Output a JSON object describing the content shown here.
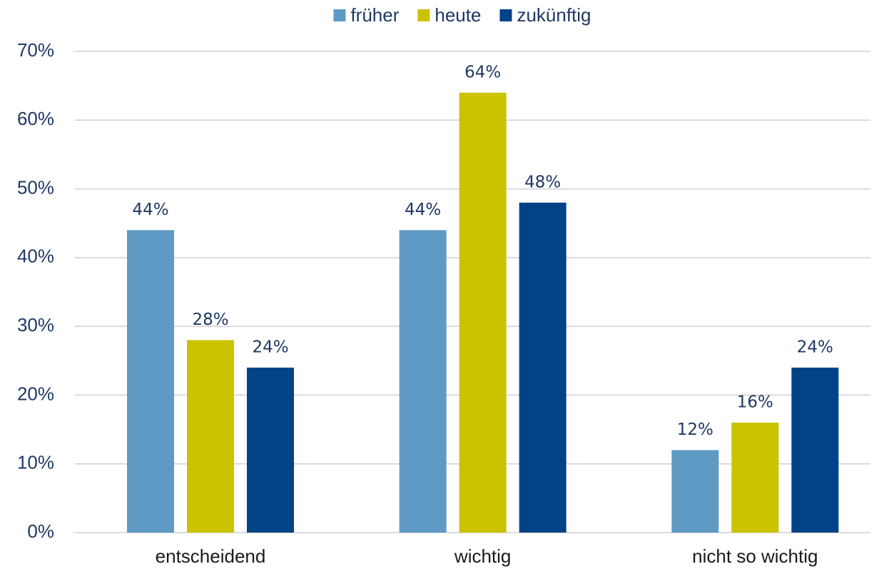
{
  "chart_data": {
    "type": "bar",
    "categories": [
      "entscheidend",
      "wichtig",
      "nicht so wichtig"
    ],
    "series": [
      {
        "name": "früher",
        "color": "#5f9ac4",
        "values": [
          44,
          44,
          12
        ],
        "value_labels": [
          "44%",
          "44%",
          "12%"
        ]
      },
      {
        "name": "heute",
        "color": "#cbc300",
        "values": [
          28,
          64,
          16
        ],
        "value_labels": [
          "28%",
          "64%",
          "16%"
        ]
      },
      {
        "name": "zukünftig",
        "color": "#004386",
        "values": [
          24,
          48,
          24
        ],
        "value_labels": [
          "24%",
          "48%",
          "24%"
        ]
      }
    ],
    "ylim": [
      0,
      70
    ],
    "yticks": [
      {
        "value": 0,
        "label": "0%"
      },
      {
        "value": 10,
        "label": "10%"
      },
      {
        "value": 20,
        "label": "20%"
      },
      {
        "value": 30,
        "label": "30%"
      },
      {
        "value": 40,
        "label": "40%"
      },
      {
        "value": 50,
        "label": "50%"
      },
      {
        "value": 60,
        "label": "60%"
      },
      {
        "value": 70,
        "label": "70%"
      }
    ],
    "grid": true,
    "legend": "top"
  }
}
